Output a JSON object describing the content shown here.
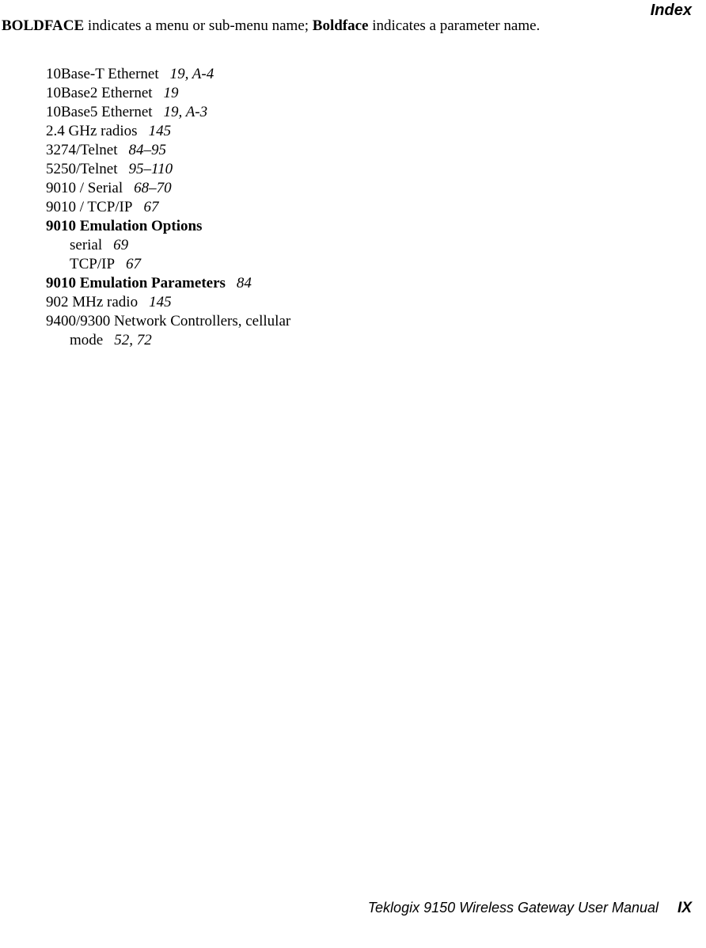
{
  "header": {
    "title": "Index"
  },
  "legend": {
    "prefix_bold": "BOLDFACE",
    "middle_1": " indicates a menu or sub-menu name; ",
    "bold_2": "Boldface",
    "suffix": " indicates a parameter name."
  },
  "entries": [
    {
      "term": "10Base-T Ethernet",
      "pages": "19, A-4",
      "bold": false,
      "indent": 0
    },
    {
      "term": "10Base2 Ethernet",
      "pages": "19",
      "bold": false,
      "indent": 0
    },
    {
      "term": "10Base5 Ethernet",
      "pages": "19, A-3",
      "bold": false,
      "indent": 0
    },
    {
      "term": "2.4 GHz radios",
      "pages": "145",
      "bold": false,
      "indent": 0
    },
    {
      "term": "3274/Telnet",
      "pages": "84–95",
      "bold": false,
      "indent": 0
    },
    {
      "term": "5250/Telnet",
      "pages": "95–110",
      "bold": false,
      "indent": 0
    },
    {
      "term": "9010 / Serial",
      "pages": "68–70",
      "bold": false,
      "indent": 0
    },
    {
      "term": "9010 / TCP/IP",
      "pages": "67",
      "bold": false,
      "indent": 0
    },
    {
      "term": "9010 Emulation Options",
      "pages": "",
      "bold": true,
      "indent": 0
    },
    {
      "term": "serial",
      "pages": "69",
      "bold": false,
      "indent": 1
    },
    {
      "term": "TCP/IP",
      "pages": "67",
      "bold": false,
      "indent": 1
    },
    {
      "term": "9010 Emulation Parameters",
      "pages": "84",
      "bold": true,
      "indent": 0
    },
    {
      "term": "902 MHz radio",
      "pages": "145",
      "bold": false,
      "indent": 0
    },
    {
      "term": "9400/9300 Network Controllers, cellular",
      "pages": "",
      "bold": false,
      "indent": 0
    },
    {
      "term": "mode",
      "pages": "52, 72",
      "bold": false,
      "indent": 1
    }
  ],
  "footer": {
    "text": "Teklogix 9150 Wireless Gateway User Manual",
    "page": "IX"
  }
}
